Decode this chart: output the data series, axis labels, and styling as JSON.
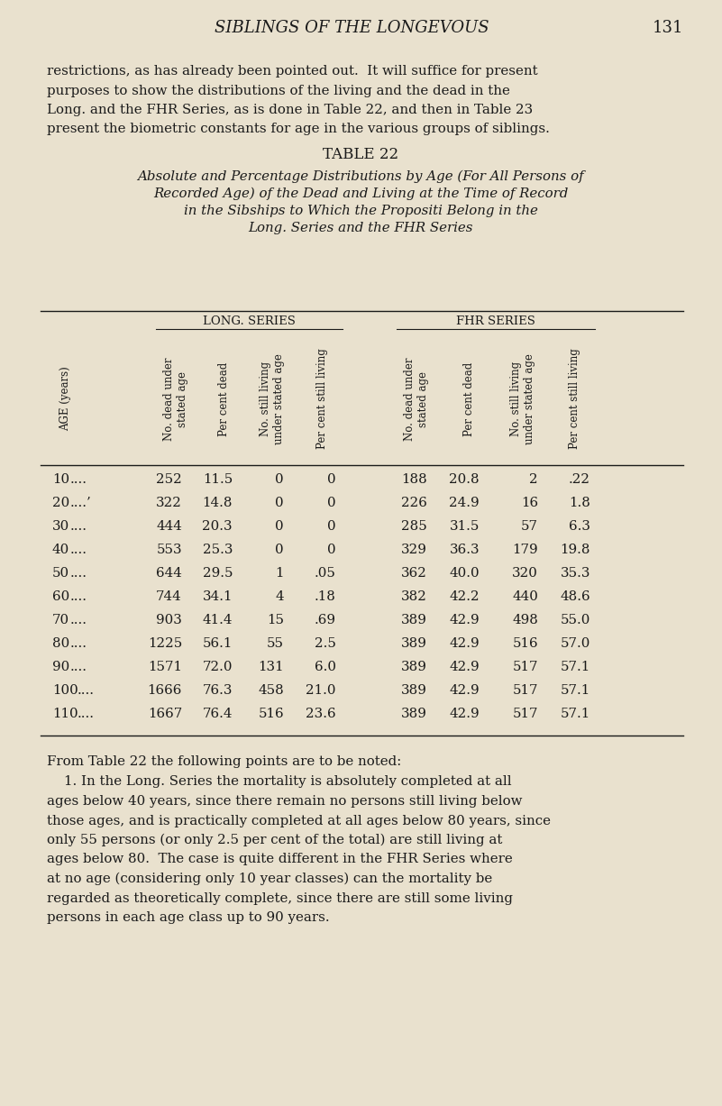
{
  "page_header": "SIBLINGS OF THE LONGEVOUS",
  "page_number": "131",
  "background_color": "#e9e1ce",
  "text_color": "#1a1a1a",
  "table_title": "TABLE 22",
  "table_subtitle_line1": "Absolute and Percentage Distributions by Age (For All Persons of",
  "table_subtitle_line2": "Recorded Age) of the Dead and Living at the Time of Record",
  "table_subtitle_line3": "in the Sibships to Which the Propositi Belong in the",
  "table_subtitle_line4": "Long. Series and the FHR Series",
  "col_group1": "LONG. SERIES",
  "col_group2": "FHR SERIES",
  "ages": [
    10,
    20,
    30,
    40,
    50,
    60,
    70,
    80,
    90,
    100,
    110
  ],
  "long_dead": [
    252,
    322,
    444,
    553,
    644,
    744,
    903,
    1225,
    1571,
    1666,
    1667
  ],
  "long_pct_dead": [
    "11.5",
    "14.8",
    "20.3",
    "25.3",
    "29.5",
    "34.1",
    "41.4",
    "56.1",
    "72.0",
    "76.3",
    "76.4"
  ],
  "long_still_living": [
    "0",
    "0",
    "0",
    "0",
    "1",
    "4",
    "15",
    "55",
    "131",
    "458",
    "516"
  ],
  "long_pct_living": [
    "0",
    "0",
    "0",
    "0",
    ".05",
    ".18",
    ".69",
    "2.5",
    "6.0",
    "21.0",
    "23.6"
  ],
  "fhr_dead": [
    188,
    226,
    285,
    329,
    362,
    382,
    389,
    389,
    389,
    389,
    389
  ],
  "fhr_pct_dead": [
    "20.8",
    "24.9",
    "31.5",
    "36.3",
    "40.0",
    "42.2",
    "42.9",
    "42.9",
    "42.9",
    "42.9",
    "42.9"
  ],
  "fhr_still_living": [
    "2",
    "16",
    "57",
    "179",
    "320",
    "440",
    "498",
    "516",
    "517",
    "517",
    "517"
  ],
  "fhr_pct_living": [
    ".22",
    "1.8",
    "6.3",
    "19.8",
    "35.3",
    "48.6",
    "55.0",
    "57.0",
    "57.1",
    "57.1",
    "57.1"
  ],
  "para1_lines": [
    "restrictions, as has already been pointed out.  It will suffice for present",
    "purposes to show the distributions of the living and the dead in the",
    "Long. and the FHR Series, as is done in Table 22, and then in Table 23",
    "present the biometric constants for age in the various groups of siblings."
  ],
  "para2_intro": "From Table 22 the following points are to be noted:",
  "para2_lines": [
    "    1. In the Long. Series the mortality is absolutely completed at all",
    "ages below 40 years, since there remain no persons still living below",
    "those ages, and is practically completed at all ages below 80 years, since",
    "only 55 persons (or only 2.5 per cent of the total) are still living at",
    "ages below 80.  The case is quite different in the FHR Series where",
    "at no age (considering only 10 year classes) can the mortality be",
    "regarded as theoretically complete, since there are still some living",
    "persons in each age class up to 90 years."
  ]
}
